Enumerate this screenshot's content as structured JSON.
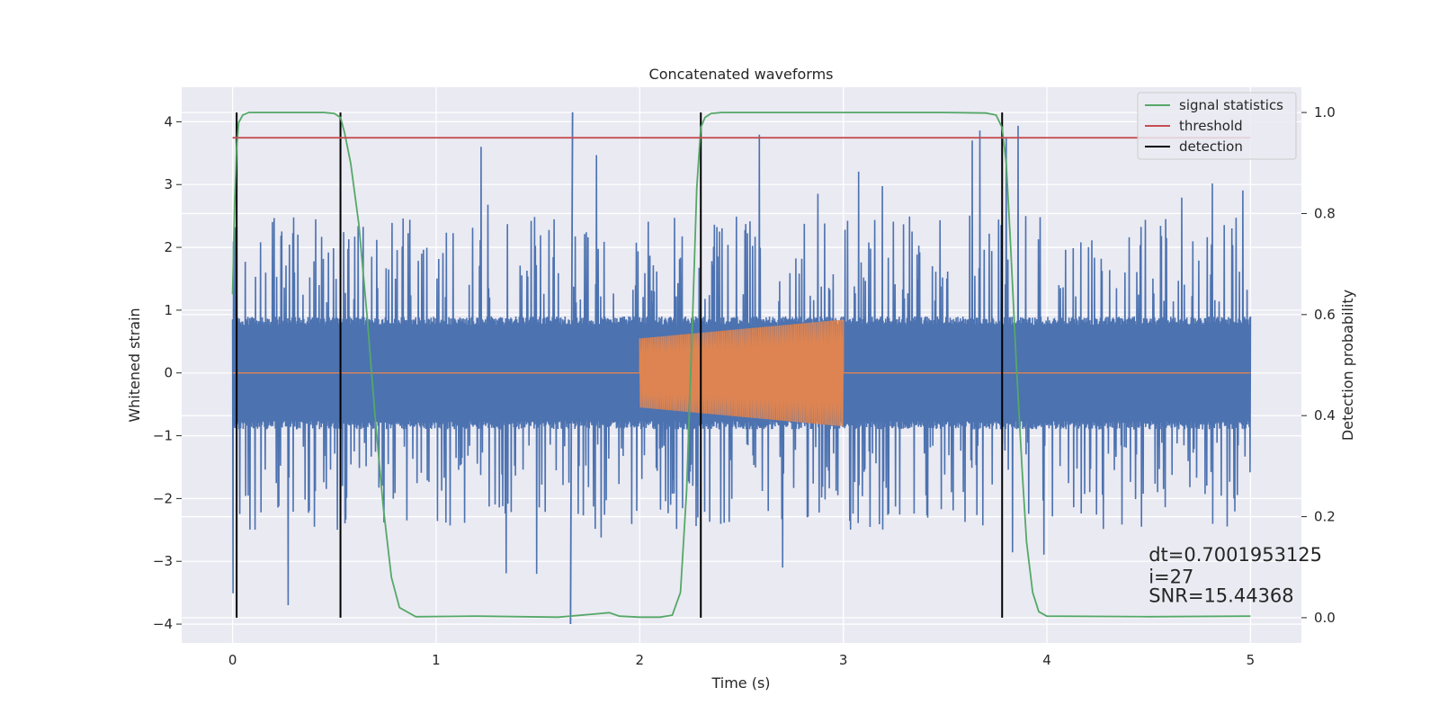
{
  "chart_data": {
    "type": "line",
    "title": "Concatenated waveforms",
    "xlabel": "Time (s)",
    "ylabel": "Whitened strain",
    "y2label": "Detection probability",
    "xlim": [
      -0.25,
      5.25
    ],
    "ylim": [
      -4.3,
      4.55
    ],
    "y2lim": [
      -0.05,
      1.05
    ],
    "xticks": [
      0,
      1,
      2,
      3,
      4,
      5
    ],
    "yticks": [
      -4,
      -3,
      -2,
      -1,
      0,
      1,
      2,
      3,
      4
    ],
    "y2ticks": [
      0.0,
      0.2,
      0.4,
      0.6,
      0.8,
      1.0
    ],
    "grid": true,
    "legend_position": "top-right",
    "noise": {
      "name": "",
      "color": "#4c72b0",
      "x_range": [
        0,
        5
      ],
      "core_amplitude": 0.9,
      "typical_peak": 2.5,
      "max": 4.15,
      "min": -4.0
    },
    "injected_signal": {
      "name": "",
      "color": "#dd8452",
      "start": 2.0,
      "end": 3.0,
      "amplitude_start": 0.55,
      "amplitude_end": 0.85
    },
    "series": [
      {
        "name": "signal statistics",
        "axis": "right",
        "color": "#55a868",
        "x": [
          0,
          0.01,
          0.02,
          0.03,
          0.05,
          0.08,
          0.15,
          0.3,
          0.45,
          0.5,
          0.53,
          0.55,
          0.58,
          0.62,
          0.66,
          0.7,
          0.74,
          0.78,
          0.82,
          0.9,
          1.2,
          1.6,
          1.8,
          1.85,
          1.9,
          2.0,
          2.1,
          2.16,
          2.2,
          2.23,
          2.26,
          2.28,
          2.3,
          2.32,
          2.35,
          2.4,
          2.6,
          3.0,
          3.5,
          3.7,
          3.75,
          3.78,
          3.8,
          3.82,
          3.85,
          3.88,
          3.9,
          3.93,
          3.96,
          4.0,
          4.5,
          5.0
        ],
        "y": [
          0.64,
          0.82,
          0.93,
          0.98,
          0.995,
          1.0,
          1.0,
          1.0,
          1.0,
          0.998,
          0.99,
          0.96,
          0.9,
          0.78,
          0.6,
          0.4,
          0.22,
          0.08,
          0.02,
          0.002,
          0.003,
          0.001,
          0.008,
          0.01,
          0.003,
          0.001,
          0.001,
          0.005,
          0.05,
          0.25,
          0.6,
          0.85,
          0.97,
          0.99,
          0.998,
          1.0,
          1.0,
          1.0,
          1.0,
          0.999,
          0.995,
          0.97,
          0.9,
          0.75,
          0.5,
          0.28,
          0.15,
          0.05,
          0.012,
          0.003,
          0.002,
          0.003
        ]
      },
      {
        "name": "threshold",
        "axis": "right",
        "color": "#c44e52",
        "x": [
          0,
          5
        ],
        "y": [
          0.95,
          0.95
        ]
      }
    ],
    "detections": {
      "name": "detection",
      "color": "#000000",
      "x": [
        0.02,
        0.53,
        2.3,
        3.78
      ]
    },
    "annotations": [
      {
        "text": "dt=0.7001953125",
        "x": 4.5,
        "y": -3.0
      },
      {
        "text": " i=27",
        "x": 4.5,
        "y": -3.35
      },
      {
        "text": "SNR=15.44368",
        "x": 4.5,
        "y": -3.65
      }
    ]
  }
}
